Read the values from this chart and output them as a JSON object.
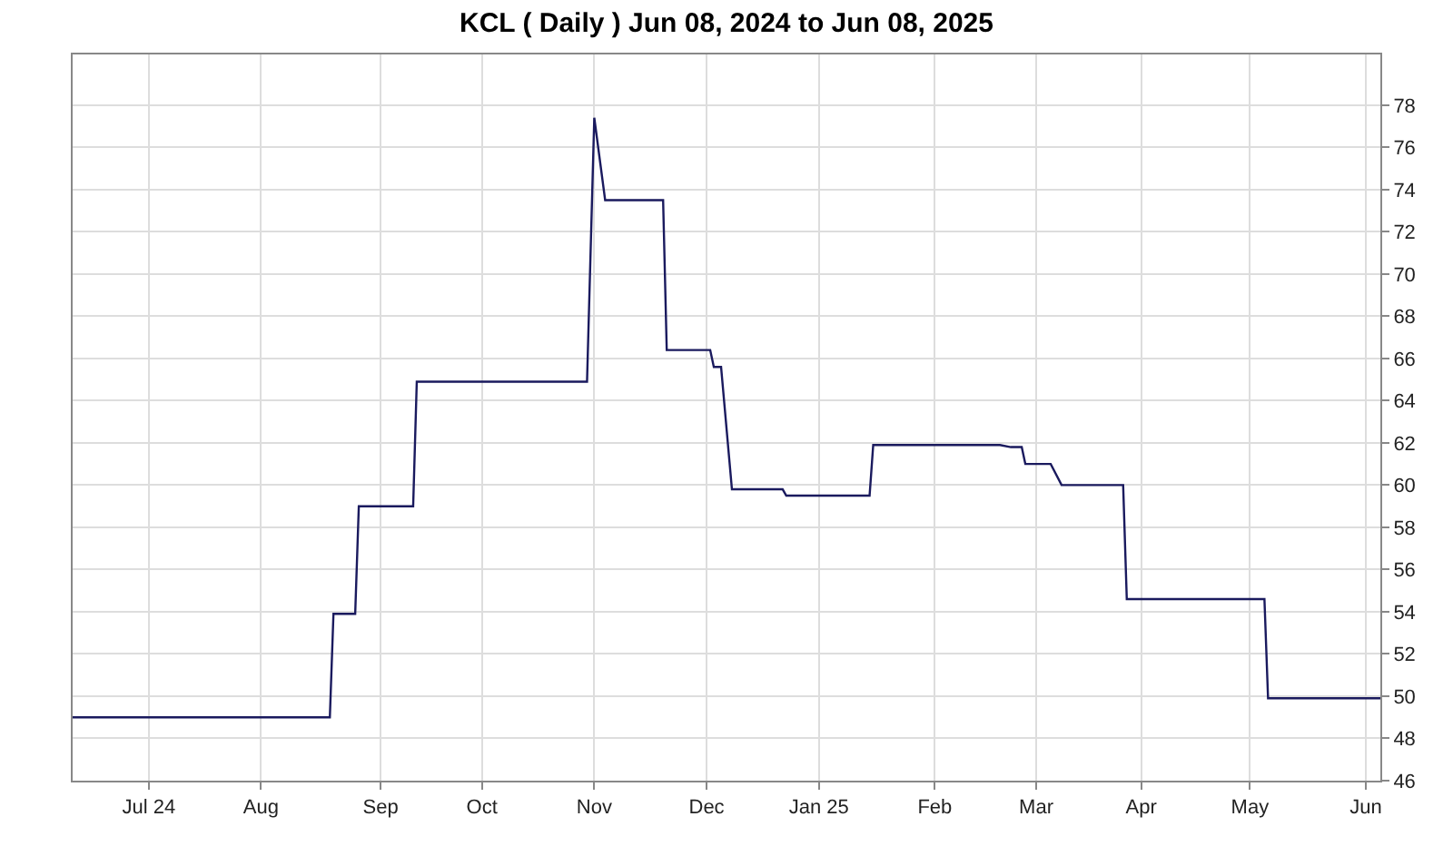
{
  "chart_data": {
    "type": "line",
    "title": "KCL ( Daily ) Jun 08, 2024 to Jun 08, 2025",
    "x": [
      "2024-06-10",
      "2024-08-20",
      "2024-08-21",
      "2024-08-27",
      "2024-08-28",
      "2024-09-12",
      "2024-09-13",
      "2024-10-30",
      "2024-11-01",
      "2024-11-04",
      "2024-11-20",
      "2024-11-21",
      "2024-12-03",
      "2024-12-04",
      "2024-12-06",
      "2024-12-09",
      "2024-12-23",
      "2024-12-24",
      "2025-01-16",
      "2025-01-17",
      "2025-02-21",
      "2025-02-24",
      "2025-02-27",
      "2025-02-28",
      "2025-03-07",
      "2025-03-10",
      "2025-03-27",
      "2025-03-28",
      "2025-05-05",
      "2025-05-06",
      "2025-06-06"
    ],
    "series": [
      {
        "color": "#1a1a5e",
        "values": [
          49.0,
          49.0,
          53.9,
          53.9,
          59.0,
          59.0,
          64.9,
          64.9,
          77.4,
          73.5,
          73.5,
          66.4,
          66.4,
          65.6,
          65.6,
          59.8,
          59.8,
          59.5,
          59.5,
          61.9,
          61.9,
          61.8,
          61.8,
          61.0,
          61.0,
          60.0,
          60.0,
          54.6,
          54.6,
          49.9,
          49.9
        ]
      }
    ],
    "xlim": [
      "2024-06-10",
      "2025-06-06"
    ],
    "xticks": [
      {
        "value": "2024-07-01",
        "label": "Jul 24"
      },
      {
        "value": "2024-08-01",
        "label": "Aug"
      },
      {
        "value": "2024-09-03",
        "label": "Sep"
      },
      {
        "value": "2024-10-01",
        "label": "Oct"
      },
      {
        "value": "2024-11-01",
        "label": "Nov"
      },
      {
        "value": "2024-12-02",
        "label": "Dec"
      },
      {
        "value": "2025-01-02",
        "label": "Jan 25"
      },
      {
        "value": "2025-02-03",
        "label": "Feb"
      },
      {
        "value": "2025-03-03",
        "label": "Mar"
      },
      {
        "value": "2025-04-01",
        "label": "Apr"
      },
      {
        "value": "2025-05-01",
        "label": "May"
      },
      {
        "value": "2025-06-02",
        "label": "Jun"
      }
    ],
    "ylim": [
      46,
      80.4
    ],
    "yticks": [
      46,
      48,
      50,
      52,
      54,
      56,
      58,
      60,
      62,
      64,
      66,
      68,
      70,
      72,
      74,
      76,
      78
    ],
    "grid": true,
    "marker": "none",
    "line_style": "solid"
  }
}
